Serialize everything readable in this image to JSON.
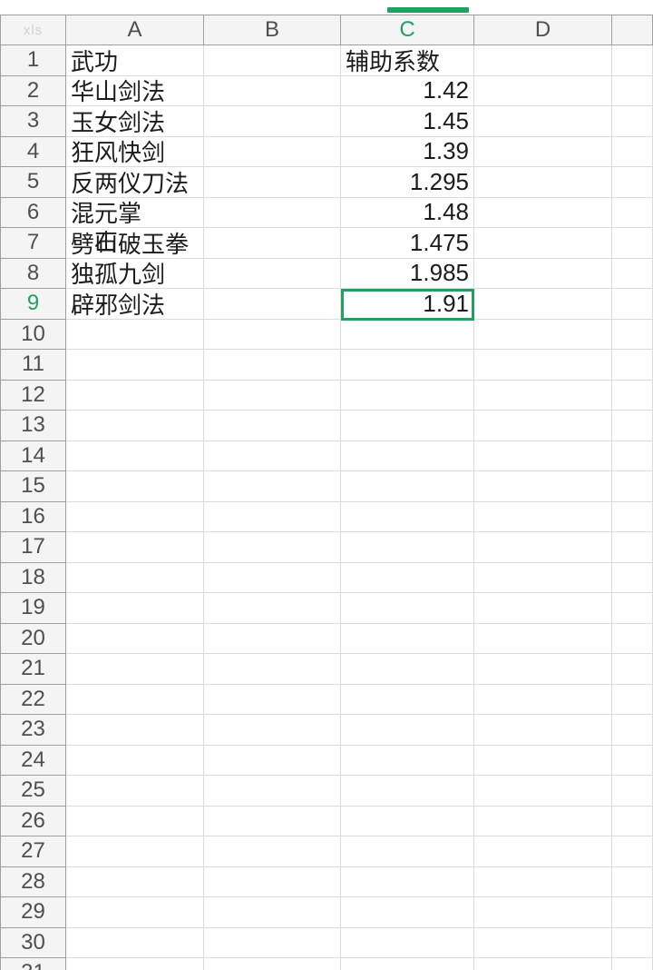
{
  "app": {
    "corner_label": "xls",
    "type": "spreadsheet"
  },
  "colors": {
    "accent_green": "#21a05f",
    "grid_light": "#dcdcdc",
    "grid_dark": "#9f9f9f",
    "header_bg": "#f4f4f4",
    "header_text": "#4f4f4f",
    "cell_text": "#1c1c1c",
    "watermark_text": "#d2d2d2"
  },
  "sheet": {
    "columns": [
      {
        "letter": "A",
        "selected": false
      },
      {
        "letter": "B",
        "selected": false
      },
      {
        "letter": "C",
        "selected": true
      },
      {
        "letter": "D",
        "selected": false
      },
      {
        "letter": "",
        "selected": false
      }
    ],
    "row_count": 31,
    "cells": {
      "A1": "武功",
      "C1": "辅助系数",
      "A2": "华山剑法",
      "C2": "1.42",
      "A3": "玉女剑法",
      "C3": "1.45",
      "A4": "狂风快剑",
      "C4": "1.39",
      "A5": "反两仪刀法",
      "C5": "1.295",
      "A6": "混元掌",
      "C6": "1.48",
      "A7": {
        "pre": "劈",
        "overlap": [
          "山",
          "石"
        ],
        "post": "破玉拳"
      },
      "C7": "1.475",
      "A8": "独孤九剑",
      "C8": "1.985",
      "A9": "辟邪剑法",
      "C9": "1.91"
    },
    "selection": {
      "cell_ref": "C9",
      "row": 9,
      "column": "C",
      "value": "1.91"
    }
  }
}
